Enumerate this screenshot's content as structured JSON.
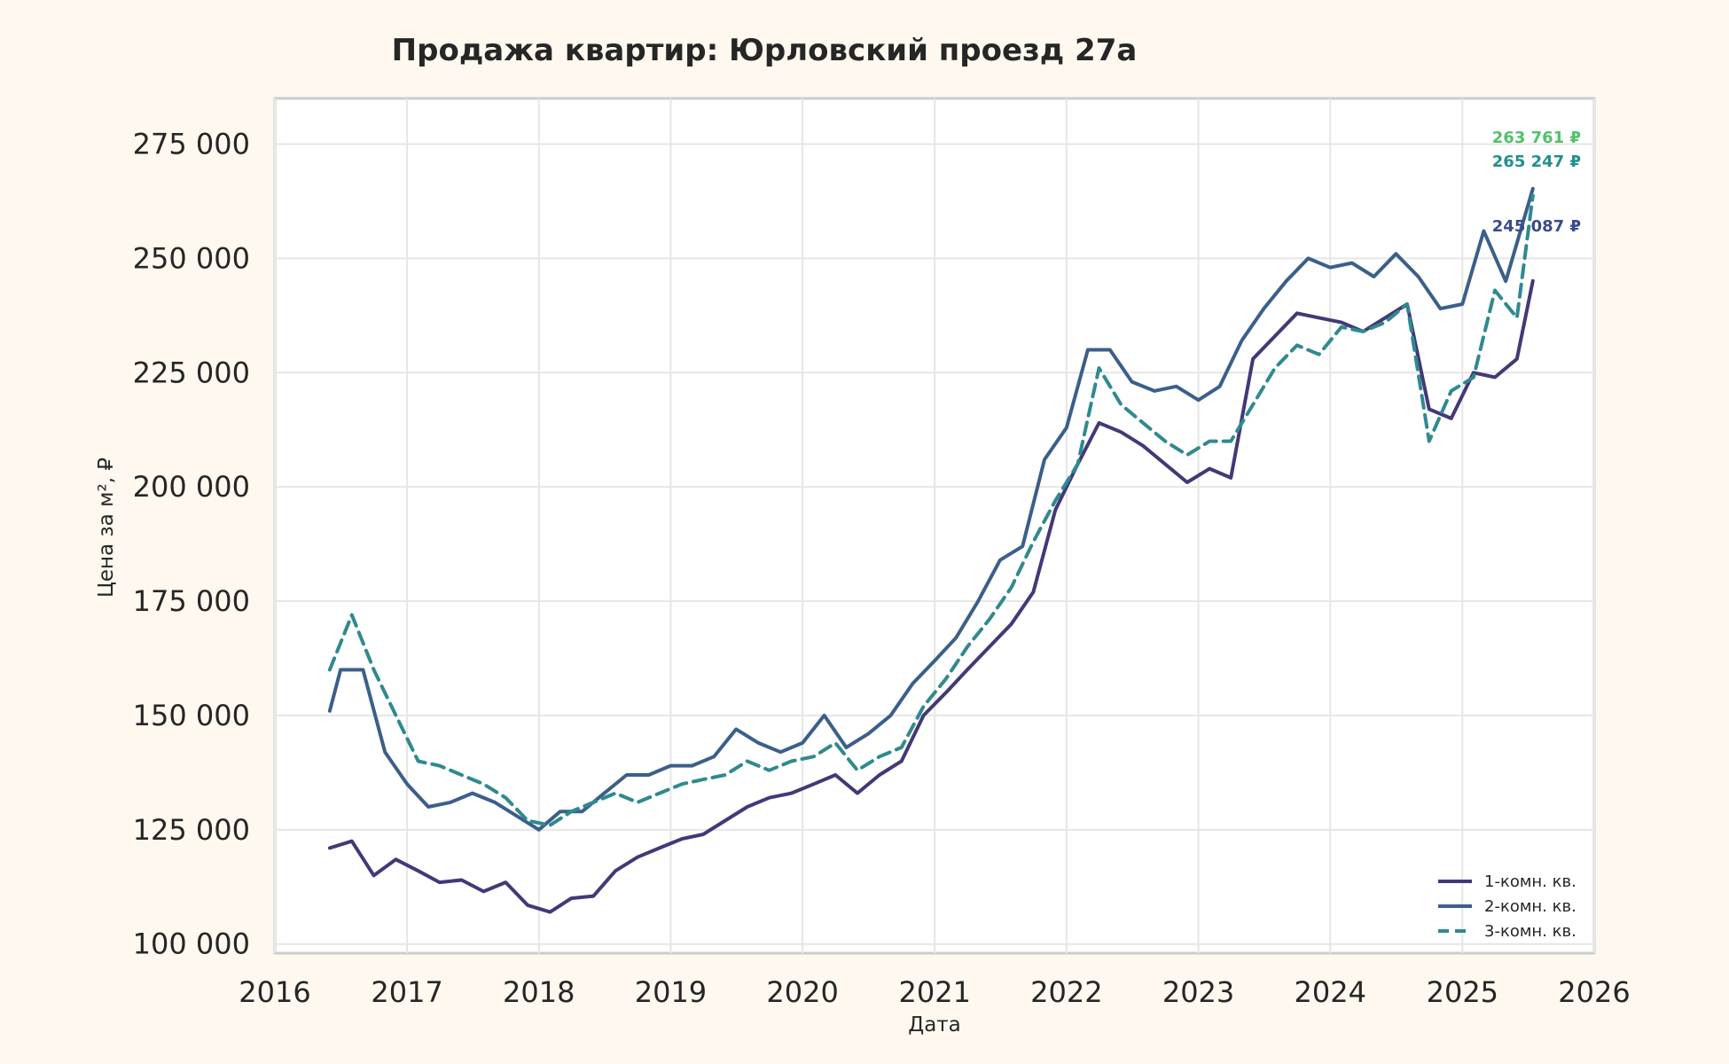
{
  "chart_data": {
    "type": "line",
    "title": "Продажа квартир: Юрловский проезд 27а",
    "xlabel": "Дата",
    "ylabel": "Цена за м², ₽",
    "xlim": [
      "2016-01-01",
      "2026-01-01"
    ],
    "ylim": [
      98000,
      285000
    ],
    "x_ticks": [
      "2016",
      "2017",
      "2018",
      "2019",
      "2020",
      "2021",
      "2022",
      "2023",
      "2024",
      "2025",
      "2026"
    ],
    "y_ticks": [
      100000,
      125000,
      150000,
      175000,
      200000,
      225000,
      250000,
      275000
    ],
    "y_tick_labels": [
      "100 000",
      "125 000",
      "150 000",
      "175 000",
      "200 000",
      "225 000",
      "250 000",
      "275 000"
    ],
    "grid": true,
    "legend_position": "lower-right",
    "series": [
      {
        "name": "1-комн. кв.",
        "color": "#433878",
        "dash": "solid",
        "end_label": "245 087 ₽",
        "end_label_color": "#3b4b8a",
        "points": [
          [
            "2016-06-01",
            121000
          ],
          [
            "2016-08-01",
            122500
          ],
          [
            "2016-10-01",
            115000
          ],
          [
            "2016-12-01",
            118500
          ],
          [
            "2017-02-01",
            116000
          ],
          [
            "2017-04-01",
            113500
          ],
          [
            "2017-06-01",
            114000
          ],
          [
            "2017-08-01",
            111500
          ],
          [
            "2017-10-01",
            113500
          ],
          [
            "2017-12-01",
            108500
          ],
          [
            "2018-02-01",
            107000
          ],
          [
            "2018-04-01",
            110000
          ],
          [
            "2018-06-01",
            110500
          ],
          [
            "2018-08-01",
            116000
          ],
          [
            "2018-10-01",
            119000
          ],
          [
            "2018-12-01",
            121000
          ],
          [
            "2019-02-01",
            123000
          ],
          [
            "2019-04-01",
            124000
          ],
          [
            "2019-06-01",
            127000
          ],
          [
            "2019-08-01",
            130000
          ],
          [
            "2019-10-01",
            132000
          ],
          [
            "2019-12-01",
            133000
          ],
          [
            "2020-02-01",
            135000
          ],
          [
            "2020-04-01",
            137000
          ],
          [
            "2020-06-01",
            133000
          ],
          [
            "2020-08-01",
            137000
          ],
          [
            "2020-10-01",
            140000
          ],
          [
            "2020-12-01",
            150000
          ],
          [
            "2021-02-01",
            155000
          ],
          [
            "2021-04-01",
            160000
          ],
          [
            "2021-06-01",
            165000
          ],
          [
            "2021-08-01",
            170000
          ],
          [
            "2021-10-01",
            177000
          ],
          [
            "2021-12-01",
            195000
          ],
          [
            "2022-02-01",
            205000
          ],
          [
            "2022-04-01",
            214000
          ],
          [
            "2022-06-01",
            212000
          ],
          [
            "2022-08-01",
            209000
          ],
          [
            "2022-10-01",
            205000
          ],
          [
            "2022-12-01",
            201000
          ],
          [
            "2023-02-01",
            204000
          ],
          [
            "2023-04-01",
            202000
          ],
          [
            "2023-06-01",
            228000
          ],
          [
            "2023-08-01",
            233000
          ],
          [
            "2023-10-01",
            238000
          ],
          [
            "2023-12-01",
            237000
          ],
          [
            "2024-02-01",
            236000
          ],
          [
            "2024-04-01",
            234000
          ],
          [
            "2024-06-01",
            237000
          ],
          [
            "2024-08-01",
            240000
          ],
          [
            "2024-10-01",
            217000
          ],
          [
            "2024-12-01",
            215000
          ],
          [
            "2025-02-01",
            225000
          ],
          [
            "2025-04-01",
            224000
          ],
          [
            "2025-06-01",
            228000
          ],
          [
            "2025-07-15",
            245087
          ]
        ]
      },
      {
        "name": "2-комн. кв.",
        "color": "#3b5f8a",
        "dash": "solid",
        "end_label": "265 247 ₽",
        "end_label_color": "#22908c",
        "points": [
          [
            "2016-06-01",
            151000
          ],
          [
            "2016-07-01",
            160000
          ],
          [
            "2016-09-01",
            160000
          ],
          [
            "2016-11-01",
            142000
          ],
          [
            "2017-01-01",
            135000
          ],
          [
            "2017-03-01",
            130000
          ],
          [
            "2017-05-01",
            131000
          ],
          [
            "2017-07-01",
            133000
          ],
          [
            "2017-09-01",
            131000
          ],
          [
            "2017-11-01",
            128000
          ],
          [
            "2018-01-01",
            125000
          ],
          [
            "2018-03-01",
            129000
          ],
          [
            "2018-05-01",
            129000
          ],
          [
            "2018-07-01",
            133000
          ],
          [
            "2018-09-01",
            137000
          ],
          [
            "2018-11-01",
            137000
          ],
          [
            "2019-01-01",
            139000
          ],
          [
            "2019-03-01",
            139000
          ],
          [
            "2019-05-01",
            141000
          ],
          [
            "2019-07-01",
            147000
          ],
          [
            "2019-09-01",
            144000
          ],
          [
            "2019-11-01",
            142000
          ],
          [
            "2020-01-01",
            144000
          ],
          [
            "2020-03-01",
            150000
          ],
          [
            "2020-05-01",
            143000
          ],
          [
            "2020-07-01",
            146000
          ],
          [
            "2020-09-01",
            150000
          ],
          [
            "2020-11-01",
            157000
          ],
          [
            "2021-01-01",
            162000
          ],
          [
            "2021-03-01",
            167000
          ],
          [
            "2021-05-01",
            175000
          ],
          [
            "2021-07-01",
            184000
          ],
          [
            "2021-09-01",
            187000
          ],
          [
            "2021-11-01",
            206000
          ],
          [
            "2022-01-01",
            213000
          ],
          [
            "2022-03-01",
            230000
          ],
          [
            "2022-05-01",
            230000
          ],
          [
            "2022-07-01",
            223000
          ],
          [
            "2022-09-01",
            221000
          ],
          [
            "2022-11-01",
            222000
          ],
          [
            "2023-01-01",
            219000
          ],
          [
            "2023-03-01",
            222000
          ],
          [
            "2023-05-01",
            232000
          ],
          [
            "2023-07-01",
            239000
          ],
          [
            "2023-09-01",
            245000
          ],
          [
            "2023-11-01",
            250000
          ],
          [
            "2024-01-01",
            248000
          ],
          [
            "2024-03-01",
            249000
          ],
          [
            "2024-05-01",
            246000
          ],
          [
            "2024-07-01",
            251000
          ],
          [
            "2024-09-01",
            246000
          ],
          [
            "2024-11-01",
            239000
          ],
          [
            "2025-01-01",
            240000
          ],
          [
            "2025-03-01",
            256000
          ],
          [
            "2025-05-01",
            245000
          ],
          [
            "2025-07-15",
            265247
          ]
        ]
      },
      {
        "name": "3-комн. кв.",
        "color": "#2f8a8f",
        "dash": "dashed",
        "end_label": "263 761 ₽",
        "end_label_color": "#50c26c",
        "points": [
          [
            "2016-06-01",
            160000
          ],
          [
            "2016-08-01",
            172000
          ],
          [
            "2016-10-01",
            160000
          ],
          [
            "2016-12-01",
            150000
          ],
          [
            "2017-02-01",
            140000
          ],
          [
            "2017-04-01",
            139000
          ],
          [
            "2017-06-01",
            137000
          ],
          [
            "2017-08-01",
            135000
          ],
          [
            "2017-10-01",
            132000
          ],
          [
            "2017-12-01",
            127000
          ],
          [
            "2018-02-01",
            126000
          ],
          [
            "2018-04-01",
            129000
          ],
          [
            "2018-06-01",
            131000
          ],
          [
            "2018-08-01",
            133000
          ],
          [
            "2018-10-01",
            131000
          ],
          [
            "2018-12-01",
            133000
          ],
          [
            "2019-02-01",
            135000
          ],
          [
            "2019-04-01",
            136000
          ],
          [
            "2019-06-01",
            137000
          ],
          [
            "2019-08-01",
            140000
          ],
          [
            "2019-10-01",
            138000
          ],
          [
            "2019-12-01",
            140000
          ],
          [
            "2020-02-01",
            141000
          ],
          [
            "2020-04-01",
            144000
          ],
          [
            "2020-06-01",
            138000
          ],
          [
            "2020-08-01",
            141000
          ],
          [
            "2020-10-01",
            143000
          ],
          [
            "2020-12-01",
            152000
          ],
          [
            "2021-02-01",
            158000
          ],
          [
            "2021-04-01",
            165000
          ],
          [
            "2021-06-01",
            171000
          ],
          [
            "2021-08-01",
            178000
          ],
          [
            "2021-10-01",
            188000
          ],
          [
            "2021-12-01",
            197000
          ],
          [
            "2022-02-01",
            205000
          ],
          [
            "2022-04-01",
            226000
          ],
          [
            "2022-06-01",
            218000
          ],
          [
            "2022-08-01",
            214000
          ],
          [
            "2022-10-01",
            210000
          ],
          [
            "2022-12-01",
            207000
          ],
          [
            "2023-02-01",
            210000
          ],
          [
            "2023-04-01",
            210000
          ],
          [
            "2023-06-01",
            218000
          ],
          [
            "2023-08-01",
            226000
          ],
          [
            "2023-10-01",
            231000
          ],
          [
            "2023-12-01",
            229000
          ],
          [
            "2024-02-01",
            235000
          ],
          [
            "2024-04-01",
            234000
          ],
          [
            "2024-06-01",
            236000
          ],
          [
            "2024-08-01",
            240000
          ],
          [
            "2024-10-01",
            210000
          ],
          [
            "2024-12-01",
            221000
          ],
          [
            "2025-02-01",
            224000
          ],
          [
            "2025-04-01",
            243000
          ],
          [
            "2025-06-01",
            237000
          ],
          [
            "2025-07-15",
            263761
          ]
        ]
      }
    ]
  }
}
